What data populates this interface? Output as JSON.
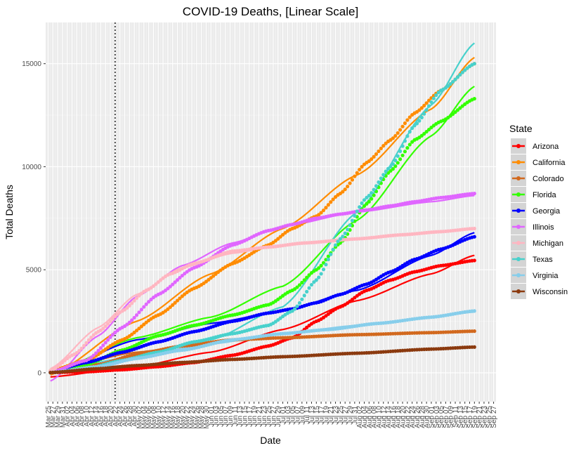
{
  "chart_data": {
    "type": "scatter",
    "title": "COVID-19 Deaths, [Linear Scale]",
    "xlabel": "Date",
    "ylabel": "Total Deaths",
    "legend_title": "State",
    "legend_position": "right",
    "grid": true,
    "xlim": [
      "2020-03-24",
      "2020-09-28"
    ],
    "ylim": [
      -1400,
      17000
    ],
    "y_ticks": [
      0,
      5000,
      10000,
      15000
    ],
    "y_tick_labels": [
      "0",
      "5000",
      "10000",
      "15000"
    ],
    "x_tick_labels": [
      "Mar 25",
      "Mar 27",
      "Mar 29",
      "Mar 31",
      "Apr 02",
      "Apr 04",
      "Apr 06",
      "Apr 08",
      "Apr 10",
      "Apr 12",
      "Apr 14",
      "Apr 16",
      "Apr 18",
      "Apr 20",
      "Apr 22",
      "Apr 24",
      "Apr 26",
      "Apr 28",
      "Apr 30",
      "May 02",
      "May 04",
      "May 06",
      "May 08",
      "May 10",
      "May 12",
      "May 14",
      "May 16",
      "May 18",
      "May 20",
      "May 22",
      "May 24",
      "May 26",
      "May 28",
      "May 30",
      "Jun 01",
      "Jun 03",
      "Jun 05",
      "Jun 07",
      "Jun 09",
      "Jun 11",
      "Jun 13",
      "Jun 15",
      "Jun 17",
      "Jun 19",
      "Jun 21",
      "Jun 23",
      "Jun 25",
      "Jun 27",
      "Jun 29",
      "Jul 01",
      "Jul 03",
      "Jul 05",
      "Jul 07",
      "Jul 09",
      "Jul 11",
      "Jul 13",
      "Jul 15",
      "Jul 17",
      "Jul 19",
      "Jul 21",
      "Jul 23",
      "Jul 25",
      "Jul 27",
      "Jul 29",
      "Jul 31",
      "Aug 02",
      "Aug 04",
      "Aug 06",
      "Aug 08",
      "Aug 10",
      "Aug 12",
      "Aug 14",
      "Aug 16",
      "Aug 18",
      "Aug 20",
      "Aug 22",
      "Aug 24",
      "Aug 26",
      "Aug 28",
      "Aug 30",
      "Sep 01",
      "Sep 03",
      "Sep 05",
      "Sep 07",
      "Sep 09",
      "Sep 11",
      "Sep 13",
      "Sep 15",
      "Sep 17",
      "Sep 19",
      "Sep 21",
      "Sep 23",
      "Sep 25",
      "Sep 27"
    ],
    "vline_date": "2020-04-22",
    "series": [
      {
        "name": "Arizona",
        "color": "#ff0000",
        "points": [
          [
            "2020-03-26",
            15
          ],
          [
            "2020-04-10",
            50
          ],
          [
            "2020-04-25",
            150
          ],
          [
            "2020-05-10",
            300
          ],
          [
            "2020-05-25",
            500
          ],
          [
            "2020-06-10",
            850
          ],
          [
            "2020-06-25",
            1300
          ],
          [
            "2020-07-05",
            1700
          ],
          [
            "2020-07-15",
            2500
          ],
          [
            "2020-07-25",
            3200
          ],
          [
            "2020-08-05",
            4000
          ],
          [
            "2020-08-15",
            4500
          ],
          [
            "2020-08-25",
            4900
          ],
          [
            "2020-09-05",
            5200
          ],
          [
            "2020-09-19",
            5450
          ]
        ],
        "fit": [
          [
            "2020-03-26",
            -200
          ],
          [
            "2020-05-01",
            300
          ],
          [
            "2020-06-01",
            1000
          ],
          [
            "2020-07-01",
            2100
          ],
          [
            "2020-08-01",
            3500
          ],
          [
            "2020-09-01",
            4800
          ],
          [
            "2020-09-19",
            5700
          ]
        ]
      },
      {
        "name": "California",
        "color": "#ff8c00",
        "points": [
          [
            "2020-03-26",
            100
          ],
          [
            "2020-04-10",
            600
          ],
          [
            "2020-04-25",
            1600
          ],
          [
            "2020-05-10",
            2800
          ],
          [
            "2020-05-25",
            4100
          ],
          [
            "2020-06-10",
            5300
          ],
          [
            "2020-06-25",
            6200
          ],
          [
            "2020-07-05",
            7000
          ],
          [
            "2020-07-15",
            7600
          ],
          [
            "2020-07-25",
            8700
          ],
          [
            "2020-08-05",
            10200
          ],
          [
            "2020-08-15",
            11300
          ],
          [
            "2020-08-25",
            12600
          ],
          [
            "2020-09-05",
            13700
          ],
          [
            "2020-09-19",
            15000
          ]
        ],
        "fit": [
          [
            "2020-03-26",
            -100
          ],
          [
            "2020-05-01",
            2500
          ],
          [
            "2020-06-01",
            4800
          ],
          [
            "2020-07-01",
            7000
          ],
          [
            "2020-08-01",
            9600
          ],
          [
            "2020-09-01",
            12800
          ],
          [
            "2020-09-19",
            15300
          ]
        ]
      },
      {
        "name": "Colorado",
        "color": "#d2691e",
        "points": [
          [
            "2020-03-26",
            20
          ],
          [
            "2020-04-15",
            400
          ],
          [
            "2020-05-01",
            900
          ],
          [
            "2020-05-20",
            1300
          ],
          [
            "2020-06-10",
            1600
          ],
          [
            "2020-07-01",
            1700
          ],
          [
            "2020-08-01",
            1850
          ],
          [
            "2020-09-01",
            1950
          ],
          [
            "2020-09-19",
            2020
          ]
        ],
        "fit": [
          [
            "2020-03-26",
            100
          ],
          [
            "2020-05-01",
            1000
          ],
          [
            "2020-06-01",
            1500
          ],
          [
            "2020-07-01",
            1720
          ],
          [
            "2020-08-01",
            1850
          ],
          [
            "2020-09-01",
            1960
          ],
          [
            "2020-09-19",
            2030
          ]
        ]
      },
      {
        "name": "Florida",
        "color": "#33ff00",
        "points": [
          [
            "2020-03-26",
            20
          ],
          [
            "2020-04-10",
            400
          ],
          [
            "2020-04-25",
            1100
          ],
          [
            "2020-05-10",
            1800
          ],
          [
            "2020-05-25",
            2300
          ],
          [
            "2020-06-10",
            2800
          ],
          [
            "2020-06-25",
            3300
          ],
          [
            "2020-07-05",
            4000
          ],
          [
            "2020-07-15",
            5000
          ],
          [
            "2020-07-25",
            6300
          ],
          [
            "2020-08-05",
            8200
          ],
          [
            "2020-08-15",
            9800
          ],
          [
            "2020-08-25",
            11300
          ],
          [
            "2020-09-05",
            12200
          ],
          [
            "2020-09-19",
            13300
          ]
        ],
        "fit": [
          [
            "2020-03-26",
            0
          ],
          [
            "2020-05-01",
            1700
          ],
          [
            "2020-06-01",
            2700
          ],
          [
            "2020-07-01",
            4200
          ],
          [
            "2020-08-01",
            7400
          ],
          [
            "2020-09-01",
            11500
          ],
          [
            "2020-09-19",
            13900
          ]
        ]
      },
      {
        "name": "Georgia",
        "color": "#0000ff",
        "points": [
          [
            "2020-03-26",
            50
          ],
          [
            "2020-04-10",
            500
          ],
          [
            "2020-04-25",
            1000
          ],
          [
            "2020-05-10",
            1500
          ],
          [
            "2020-05-25",
            2000
          ],
          [
            "2020-06-10",
            2500
          ],
          [
            "2020-06-25",
            2900
          ],
          [
            "2020-07-05",
            3100
          ],
          [
            "2020-07-15",
            3400
          ],
          [
            "2020-07-25",
            3800
          ],
          [
            "2020-08-05",
            4300
          ],
          [
            "2020-08-15",
            4900
          ],
          [
            "2020-08-25",
            5500
          ],
          [
            "2020-09-05",
            6000
          ],
          [
            "2020-09-19",
            6600
          ]
        ],
        "fit": [
          [
            "2020-03-26",
            0
          ],
          [
            "2020-05-01",
            1600
          ],
          [
            "2020-06-01",
            2400
          ],
          [
            "2020-07-01",
            3000
          ],
          [
            "2020-08-01",
            4000
          ],
          [
            "2020-09-01",
            5700
          ],
          [
            "2020-09-19",
            6800
          ]
        ]
      },
      {
        "name": "Illinois",
        "color": "#e066ff",
        "points": [
          [
            "2020-03-26",
            30
          ],
          [
            "2020-04-10",
            600
          ],
          [
            "2020-04-25",
            2200
          ],
          [
            "2020-05-10",
            3800
          ],
          [
            "2020-05-25",
            5100
          ],
          [
            "2020-06-10",
            6200
          ],
          [
            "2020-06-25",
            6900
          ],
          [
            "2020-07-05",
            7200
          ],
          [
            "2020-07-15",
            7500
          ],
          [
            "2020-07-25",
            7700
          ],
          [
            "2020-08-05",
            7900
          ],
          [
            "2020-08-15",
            8100
          ],
          [
            "2020-08-25",
            8300
          ],
          [
            "2020-09-05",
            8500
          ],
          [
            "2020-09-19",
            8700
          ]
        ],
        "fit": [
          [
            "2020-03-26",
            -400
          ],
          [
            "2020-04-15",
            1800
          ],
          [
            "2020-05-01",
            3700
          ],
          [
            "2020-05-20",
            5200
          ],
          [
            "2020-06-10",
            6300
          ],
          [
            "2020-07-01",
            7100
          ],
          [
            "2020-08-01",
            7800
          ],
          [
            "2020-09-01",
            8300
          ],
          [
            "2020-09-19",
            8600
          ]
        ]
      },
      {
        "name": "Michigan",
        "color": "#ffb6c1",
        "points": [
          [
            "2020-03-26",
            100
          ],
          [
            "2020-04-05",
            900
          ],
          [
            "2020-04-15",
            2000
          ],
          [
            "2020-04-25",
            3000
          ],
          [
            "2020-05-05",
            4000
          ],
          [
            "2020-05-15",
            4800
          ],
          [
            "2020-05-25",
            5300
          ],
          [
            "2020-06-10",
            5900
          ],
          [
            "2020-06-25",
            6100
          ],
          [
            "2020-07-10",
            6300
          ],
          [
            "2020-08-01",
            6500
          ],
          [
            "2020-08-20",
            6700
          ],
          [
            "2020-09-05",
            6850
          ],
          [
            "2020-09-19",
            7000
          ]
        ],
        "fit": [
          [
            "2020-03-26",
            200
          ],
          [
            "2020-04-15",
            2200
          ],
          [
            "2020-05-01",
            3800
          ],
          [
            "2020-05-20",
            5100
          ],
          [
            "2020-06-10",
            5800
          ],
          [
            "2020-07-01",
            6200
          ],
          [
            "2020-08-01",
            6500
          ],
          [
            "2020-09-01",
            6800
          ],
          [
            "2020-09-19",
            7000
          ]
        ]
      },
      {
        "name": "Texas",
        "color": "#48d1cc",
        "points": [
          [
            "2020-03-26",
            10
          ],
          [
            "2020-04-10",
            200
          ],
          [
            "2020-04-25",
            600
          ],
          [
            "2020-05-10",
            1000
          ],
          [
            "2020-05-25",
            1500
          ],
          [
            "2020-06-10",
            1900
          ],
          [
            "2020-06-25",
            2300
          ],
          [
            "2020-07-05",
            3000
          ],
          [
            "2020-07-15",
            4500
          ],
          [
            "2020-07-25",
            6500
          ],
          [
            "2020-08-05",
            8500
          ],
          [
            "2020-08-15",
            10000
          ],
          [
            "2020-08-25",
            12000
          ],
          [
            "2020-09-05",
            13700
          ],
          [
            "2020-09-19",
            15000
          ]
        ],
        "fit": [
          [
            "2020-03-26",
            100
          ],
          [
            "2020-05-01",
            800
          ],
          [
            "2020-06-01",
            1600
          ],
          [
            "2020-07-01",
            3200
          ],
          [
            "2020-08-01",
            7800
          ],
          [
            "2020-09-01",
            13000
          ],
          [
            "2020-09-19",
            16000
          ]
        ]
      },
      {
        "name": "Virginia",
        "color": "#87ceeb",
        "points": [
          [
            "2020-03-26",
            10
          ],
          [
            "2020-04-15",
            300
          ],
          [
            "2020-05-01",
            700
          ],
          [
            "2020-05-20",
            1100
          ],
          [
            "2020-06-10",
            1600
          ],
          [
            "2020-07-01",
            1900
          ],
          [
            "2020-07-20",
            2100
          ],
          [
            "2020-08-10",
            2400
          ],
          [
            "2020-09-01",
            2700
          ],
          [
            "2020-09-19",
            3000
          ]
        ],
        "fit": [
          [
            "2020-03-26",
            0
          ],
          [
            "2020-05-01",
            800
          ],
          [
            "2020-06-01",
            1400
          ],
          [
            "2020-07-01",
            1900
          ],
          [
            "2020-08-01",
            2300
          ],
          [
            "2020-09-01",
            2700
          ],
          [
            "2020-09-19",
            2950
          ]
        ]
      },
      {
        "name": "Wisconsin",
        "color": "#8b3a0f",
        "points": [
          [
            "2020-03-26",
            10
          ],
          [
            "2020-04-15",
            200
          ],
          [
            "2020-05-01",
            350
          ],
          [
            "2020-05-20",
            500
          ],
          [
            "2020-06-10",
            650
          ],
          [
            "2020-07-01",
            780
          ],
          [
            "2020-08-01",
            950
          ],
          [
            "2020-09-01",
            1150
          ],
          [
            "2020-09-19",
            1250
          ]
        ],
        "fit": [
          [
            "2020-03-26",
            50
          ],
          [
            "2020-05-01",
            380
          ],
          [
            "2020-06-01",
            600
          ],
          [
            "2020-07-01",
            780
          ],
          [
            "2020-08-01",
            950
          ],
          [
            "2020-09-01",
            1130
          ],
          [
            "2020-09-19",
            1250
          ]
        ]
      }
    ]
  }
}
